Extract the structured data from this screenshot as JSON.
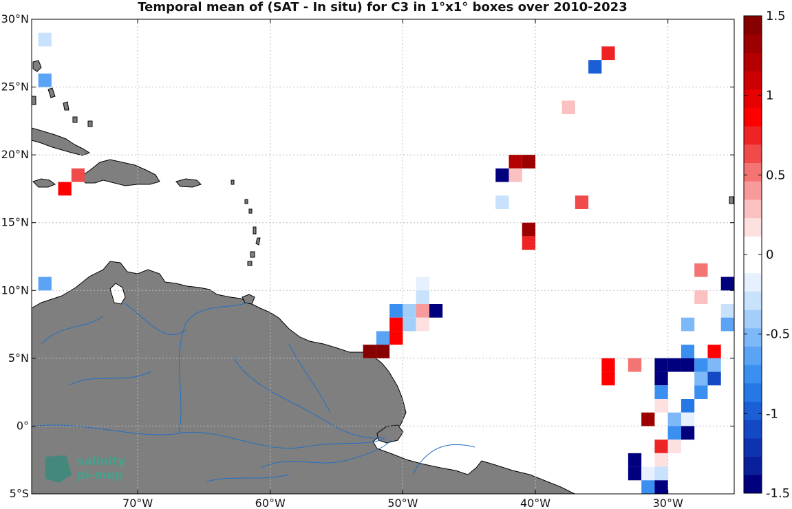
{
  "chart_data": {
    "type": "heatmap",
    "title": "Temporal mean of (SAT - In situ) for C3 in 1°x1° boxes over 2010-2023",
    "projection": "map",
    "lon_range": [
      -78,
      -25
    ],
    "lat_range": [
      -5,
      30
    ],
    "x_ticks": [
      {
        "value": -70,
        "label": "70°W"
      },
      {
        "value": -60,
        "label": "60°W"
      },
      {
        "value": -50,
        "label": "50°W"
      },
      {
        "value": -40,
        "label": "40°W"
      },
      {
        "value": -30,
        "label": "30°W"
      }
    ],
    "y_ticks": [
      {
        "value": 30,
        "label": "30°N"
      },
      {
        "value": 25,
        "label": "25°N"
      },
      {
        "value": 20,
        "label": "20°N"
      },
      {
        "value": 15,
        "label": "15°N"
      },
      {
        "value": 10,
        "label": "10°N"
      },
      {
        "value": 5,
        "label": "5°N"
      },
      {
        "value": 0,
        "label": "0°"
      },
      {
        "value": -5,
        "label": "5°S"
      }
    ],
    "grid": true,
    "colorbar": {
      "min": -1.5,
      "max": 1.5,
      "position": "right",
      "ticks": [
        1.5,
        1,
        0.5,
        0,
        -0.5,
        -1,
        -1.5
      ],
      "tick_labels": [
        "1.5",
        "1",
        "0.5",
        "0",
        "-0.5",
        "-1",
        "-1.5"
      ],
      "colors": [
        "#00007f",
        "#0a1f9a",
        "#0f33b0",
        "#1449c4",
        "#1a5fd6",
        "#2578e6",
        "#3a8ff0",
        "#5aa3f5",
        "#7db8f8",
        "#a4cefa",
        "#c8e1fc",
        "#e6f0fe",
        "#ffffff",
        "#ffffff",
        "#fde0e0",
        "#fbc0c0",
        "#f89a9a",
        "#f47373",
        "#f04a4a",
        "#ee2424",
        "#ff0000",
        "#e60000",
        "#cc0000",
        "#b40000",
        "#9c0000",
        "#860000"
      ]
    },
    "cells": [
      {
        "lon": -77,
        "lat": 28.5,
        "value": -0.25
      },
      {
        "lon": -77,
        "lat": 25.5,
        "value": -0.6
      },
      {
        "lon": -74.5,
        "lat": 18.5,
        "value": 0.6
      },
      {
        "lon": -75.5,
        "lat": 17.5,
        "value": 0.85
      },
      {
        "lon": -77,
        "lat": 10.5,
        "value": -0.65
      },
      {
        "lon": -34.5,
        "lat": 27.5,
        "value": 0.8
      },
      {
        "lon": -35.5,
        "lat": 26.5,
        "value": -1.0
      },
      {
        "lon": -37.5,
        "lat": 23.5,
        "value": 0.3
      },
      {
        "lon": -41.5,
        "lat": 19.5,
        "value": 1.2
      },
      {
        "lon": -40.5,
        "lat": 19.5,
        "value": 1.3
      },
      {
        "lon": -42.5,
        "lat": 18.5,
        "value": -1.5
      },
      {
        "lon": -41.5,
        "lat": 18.5,
        "value": 0.3
      },
      {
        "lon": -42.5,
        "lat": 16.5,
        "value": -0.25
      },
      {
        "lon": -36.5,
        "lat": 16.5,
        "value": 0.65
      },
      {
        "lon": -40.5,
        "lat": 14.5,
        "value": 1.3
      },
      {
        "lon": -40.5,
        "lat": 13.5,
        "value": 0.7
      },
      {
        "lon": -48.5,
        "lat": 10.5,
        "value": -0.15
      },
      {
        "lon": -48.5,
        "lat": 9.5,
        "value": -0.3
      },
      {
        "lon": -50.5,
        "lat": 8.5,
        "value": -0.8
      },
      {
        "lon": -49.5,
        "lat": 8.5,
        "value": -0.45
      },
      {
        "lon": -48.5,
        "lat": 8.5,
        "value": 0.4
      },
      {
        "lon": -47.5,
        "lat": 8.5,
        "value": -1.5
      },
      {
        "lon": -50.5,
        "lat": 7.5,
        "value": 0.85
      },
      {
        "lon": -49.5,
        "lat": 7.5,
        "value": -0.35
      },
      {
        "lon": -48.5,
        "lat": 7.5,
        "value": 0.2
      },
      {
        "lon": -51.5,
        "lat": 6.5,
        "value": -0.6
      },
      {
        "lon": -50.5,
        "lat": 6.5,
        "value": 0.85
      },
      {
        "lon": -52.5,
        "lat": 5.5,
        "value": 1.4
      },
      {
        "lon": -51.5,
        "lat": 5.5,
        "value": 1.4
      },
      {
        "lon": -27.5,
        "lat": 11.5,
        "value": 0.55
      },
      {
        "lon": -25.5,
        "lat": 10.5,
        "value": -1.5
      },
      {
        "lon": -27.5,
        "lat": 9.5,
        "value": 0.3
      },
      {
        "lon": -25.5,
        "lat": 8.5,
        "value": -0.3
      },
      {
        "lon": -28.5,
        "lat": 7.5,
        "value": -0.5
      },
      {
        "lon": -25.5,
        "lat": 7.5,
        "value": -0.6
      },
      {
        "lon": -28.5,
        "lat": 5.5,
        "value": -0.75
      },
      {
        "lon": -27.5,
        "lat": 5.5,
        "value": -0.1
      },
      {
        "lon": -26.5,
        "lat": 5.5,
        "value": 0.9
      },
      {
        "lon": -34.5,
        "lat": 4.5,
        "value": 0.85
      },
      {
        "lon": -32.5,
        "lat": 4.5,
        "value": 0.55
      },
      {
        "lon": -30.5,
        "lat": 4.5,
        "value": -1.5
      },
      {
        "lon": -29.5,
        "lat": 4.5,
        "value": -1.5
      },
      {
        "lon": -28.5,
        "lat": 4.5,
        "value": -1.5
      },
      {
        "lon": -27.5,
        "lat": 4.5,
        "value": -0.8
      },
      {
        "lon": -26.5,
        "lat": 4.5,
        "value": -0.5
      },
      {
        "lon": -34.5,
        "lat": 3.5,
        "value": 0.85
      },
      {
        "lon": -30.5,
        "lat": 3.5,
        "value": -1.5
      },
      {
        "lon": -27.5,
        "lat": 3.5,
        "value": -0.5
      },
      {
        "lon": -26.5,
        "lat": 3.5,
        "value": -1.1
      },
      {
        "lon": -30.5,
        "lat": 2.5,
        "value": -0.7
      },
      {
        "lon": -27.5,
        "lat": 2.5,
        "value": -0.7
      },
      {
        "lon": -30.5,
        "lat": 1.5,
        "value": 0.2
      },
      {
        "lon": -28.5,
        "lat": 1.5,
        "value": -0.9
      },
      {
        "lon": -31.5,
        "lat": 0.5,
        "value": 1.3
      },
      {
        "lon": -29.5,
        "lat": 0.5,
        "value": -0.5
      },
      {
        "lon": -28.5,
        "lat": 0.5,
        "value": -0.2
      },
      {
        "lon": -29.5,
        "lat": -0.5,
        "value": -0.7
      },
      {
        "lon": -28.5,
        "lat": -0.5,
        "value": -1.5
      },
      {
        "lon": -30.5,
        "lat": -1.5,
        "value": 0.75
      },
      {
        "lon": -29.5,
        "lat": -1.5,
        "value": 0.2
      },
      {
        "lon": -32.5,
        "lat": -2.5,
        "value": -1.5
      },
      {
        "lon": -30.5,
        "lat": -2.5,
        "value": 0.2
      },
      {
        "lon": -32.5,
        "lat": -3.5,
        "value": -1.5
      },
      {
        "lon": -31.5,
        "lat": -3.5,
        "value": -0.2
      },
      {
        "lon": -30.5,
        "lat": -3.5,
        "value": -0.25
      },
      {
        "lon": -31.5,
        "lat": -4.5,
        "value": -0.7
      },
      {
        "lon": -30.5,
        "lat": -4.5,
        "value": -1.5
      }
    ]
  },
  "logo": {
    "line1": "salinity",
    "line2": "pi-mep"
  },
  "colors": {
    "land": "#7f7f7f",
    "rivers": "#1f6fc4",
    "coast": "#000000",
    "grid": "#bdbdbd"
  }
}
